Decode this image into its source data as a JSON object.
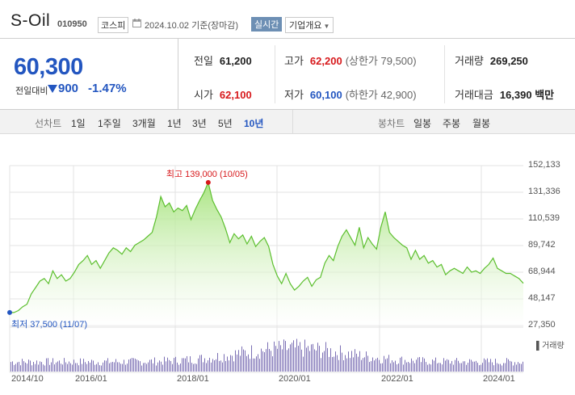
{
  "header": {
    "name": "S-Oil",
    "code": "010950",
    "market": "코스피",
    "date_label": "2024.10.02 기준(장마감)",
    "live_label": "실시간",
    "company_info_label": "기업개요"
  },
  "price": {
    "current": "60,300",
    "change_label": "전일대비",
    "change": "900",
    "change_pct": "-1.47%"
  },
  "stats": [
    {
      "label": "전일",
      "value": "61,200",
      "tone": "black",
      "sub": ""
    },
    {
      "label": "고가",
      "value": "62,200",
      "tone": "red",
      "sub": "(상한가 79,500)"
    },
    {
      "label": "거래량",
      "value": "269,250",
      "tone": "black",
      "sub": ""
    },
    {
      "label": "시가",
      "value": "62,100",
      "tone": "red",
      "sub": ""
    },
    {
      "label": "저가",
      "value": "60,100",
      "tone": "blue",
      "sub": "(하한가 42,900)"
    },
    {
      "label": "거래대금",
      "value": "16,390 백만",
      "tone": "black",
      "sub": ""
    }
  ],
  "tabs": {
    "line_label": "선차트",
    "line_periods": [
      "1일",
      "1주일",
      "3개월",
      "1년",
      "3년",
      "5년",
      "10년"
    ],
    "active_period": "10년",
    "candle_label": "봉차트",
    "candle_periods": [
      "일봉",
      "주봉",
      "월봉"
    ]
  },
  "colors": {
    "accent": "#2356c0",
    "up": "#d7191c",
    "line": "#5cbf2e",
    "fill_top": "#a6e37d",
    "volume": "#7b6fb4"
  },
  "chart_data": {
    "type": "area",
    "x_ticks": [
      "2014/10",
      "2016/01",
      "2018/01",
      "2020/01",
      "2022/01",
      "2024/01"
    ],
    "y_ticks": [
      152133,
      131336,
      110539,
      89742,
      68944,
      48147,
      27350
    ],
    "ylim": [
      27350,
      152133
    ],
    "high_annotation": "최고 139,000 (10/05)",
    "low_annotation": "최저 37,500 (11/07)",
    "volume_label": "거래량",
    "series": [
      {
        "values": [
          37500,
          37500,
          39000,
          42000,
          44000,
          52000,
          57000,
          62000,
          64000,
          60000,
          70000,
          64000,
          67000,
          62000,
          64000,
          69000,
          75000,
          78000,
          82000,
          75000,
          78000,
          72000,
          78000,
          84000,
          88000,
          86000,
          83000,
          88000,
          85000,
          90000,
          92000,
          94000,
          97000,
          100000,
          112000,
          128000,
          120000,
          123000,
          116000,
          119000,
          117000,
          121000,
          110000,
          118000,
          125000,
          131000,
          139000,
          125000,
          118000,
          112000,
          103000,
          92000,
          99000,
          95000,
          98000,
          91000,
          97000,
          89000,
          93000,
          96000,
          89000,
          75000,
          66000,
          60000,
          68000,
          60000,
          55000,
          58000,
          62000,
          65000,
          58000,
          63000,
          65000,
          76000,
          82000,
          78000,
          89000,
          97000,
          102000,
          96000,
          90000,
          104000,
          88000,
          96000,
          91000,
          87000,
          104000,
          116000,
          100000,
          96000,
          93000,
          90000,
          88000,
          79000,
          86000,
          79000,
          82000,
          76000,
          78000,
          73000,
          75000,
          67000,
          70000,
          72000,
          70000,
          68000,
          73000,
          69000,
          70000,
          68000,
          72000,
          75000,
          80000,
          72000,
          70000,
          68000,
          68000,
          66000,
          64000,
          60300
        ]
      }
    ]
  }
}
